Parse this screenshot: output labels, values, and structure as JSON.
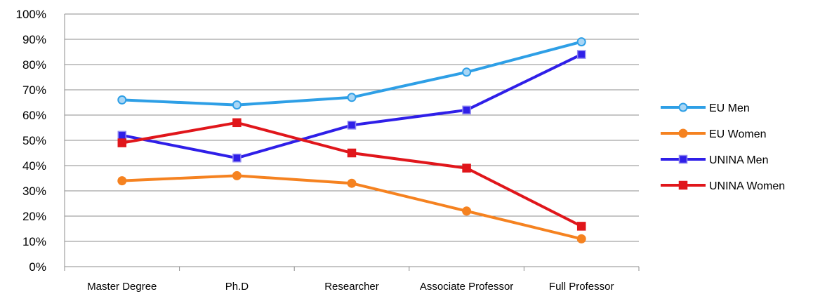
{
  "chart_data": {
    "type": "line",
    "title": "",
    "xlabel": "",
    "ylabel": "",
    "categories": [
      "Master Degree",
      "Ph.D",
      "Researcher",
      "Associate Professor",
      "Full Professor"
    ],
    "ylim": [
      0,
      100
    ],
    "y_ticks": [
      "0%",
      "10%",
      "20%",
      "30%",
      "40%",
      "50%",
      "60%",
      "70%",
      "80%",
      "90%",
      "100%"
    ],
    "grid": true,
    "legend_position": "right",
    "series": [
      {
        "name": "EU Men",
        "values": [
          66,
          64,
          67,
          77,
          89
        ],
        "color": "#2e9fe6",
        "marker": "circle-open"
      },
      {
        "name": "EU Women",
        "values": [
          34,
          36,
          33,
          22,
          11
        ],
        "color": "#f58220",
        "marker": "circle"
      },
      {
        "name": "UNINA Men",
        "values": [
          52,
          43,
          56,
          62,
          84
        ],
        "color": "#2f1fe8",
        "marker": "square"
      },
      {
        "name": "UNINA Women",
        "values": [
          49,
          57,
          45,
          39,
          16
        ],
        "color": "#e0161b",
        "marker": "square"
      }
    ]
  }
}
